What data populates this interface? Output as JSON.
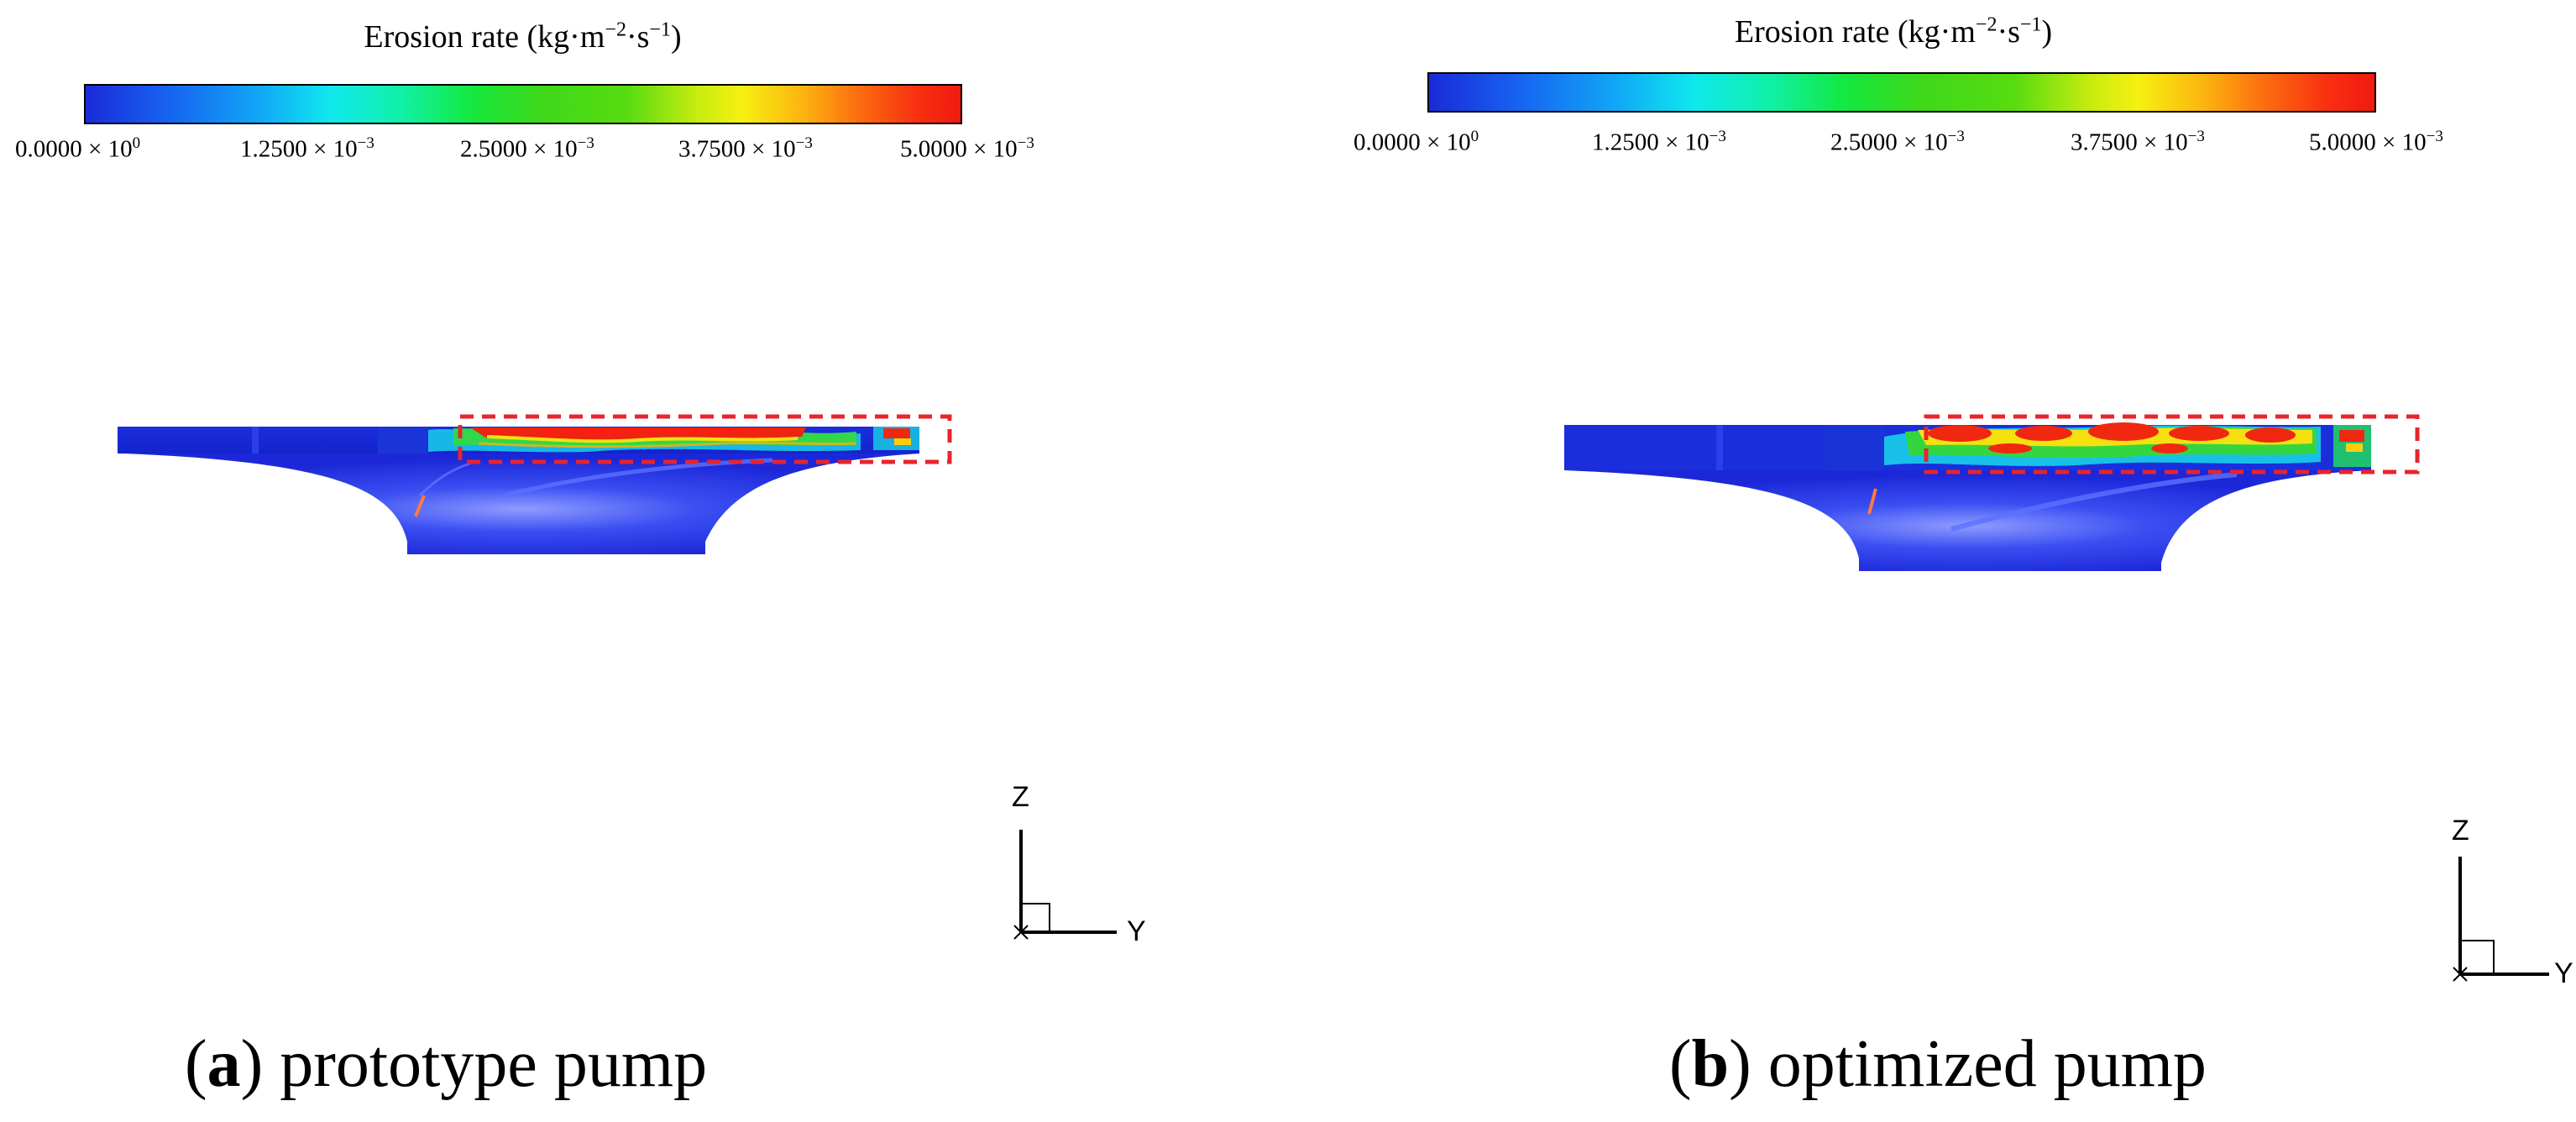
{
  "panels": [
    {
      "id": "a",
      "colorbar": {
        "title_main": "Erosion rate (kg·m",
        "title_exp1": "−2",
        "title_mid": "·s",
        "title_exp2": "−1",
        "title_end": ")",
        "ticks": [
          {
            "mantissa": "0.0000 × 10",
            "exp": "0"
          },
          {
            "mantissa": "1.2500 × 10",
            "exp": "−3"
          },
          {
            "mantissa": "2.5000 × 10",
            "exp": "−3"
          },
          {
            "mantissa": "3.7500 × 10",
            "exp": "−3"
          },
          {
            "mantissa": "5.0000 × 10",
            "exp": "−3"
          }
        ]
      },
      "caption": {
        "letter": "a",
        "text": "prototype pump"
      },
      "axes": {
        "z": "Z",
        "y": "Y",
        "x": "X"
      }
    },
    {
      "id": "b",
      "colorbar": {
        "title_main": "Erosion rate (kg·m",
        "title_exp1": "−2",
        "title_mid": "·s",
        "title_exp2": "−1",
        "title_end": ")",
        "ticks": [
          {
            "mantissa": "0.0000 × 10",
            "exp": "0"
          },
          {
            "mantissa": "1.2500 × 10",
            "exp": "−3"
          },
          {
            "mantissa": "2.5000 × 10",
            "exp": "−3"
          },
          {
            "mantissa": "3.7500 × 10",
            "exp": "−3"
          },
          {
            "mantissa": "5.0000 × 10",
            "exp": "−3"
          }
        ]
      },
      "caption": {
        "letter": "b",
        "text": "optimized pump"
      },
      "axes": {
        "z": "Z",
        "y": "Y",
        "x": "X"
      }
    }
  ],
  "colors": {
    "background": "#ffffff",
    "highlight_box": "#e8242c",
    "impeller_base": "#1c28d8"
  }
}
